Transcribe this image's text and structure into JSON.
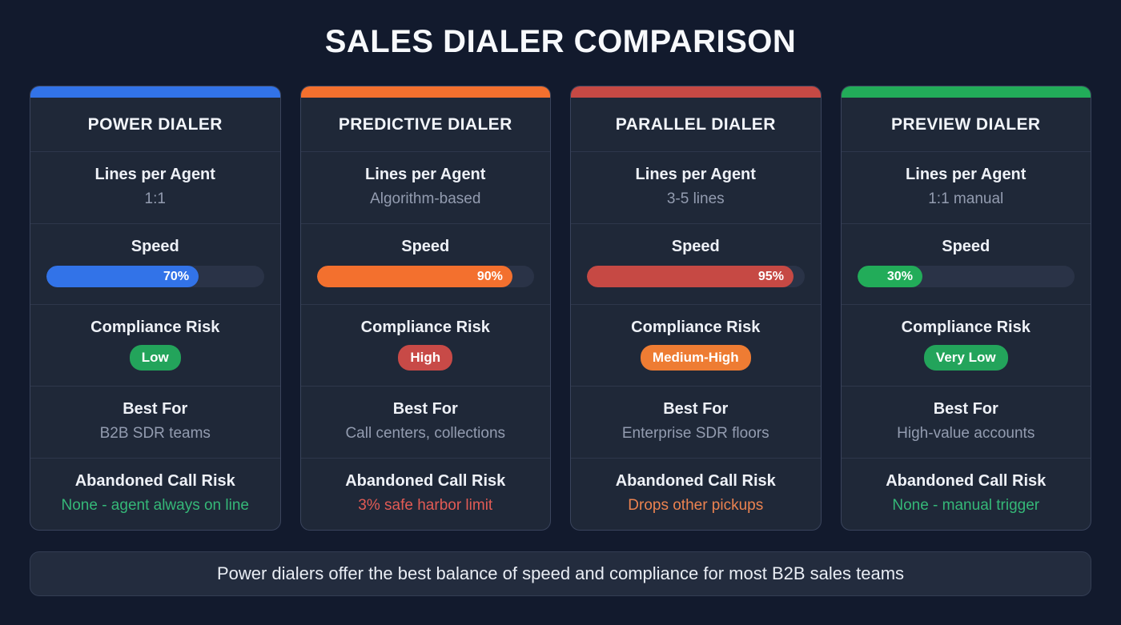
{
  "title": "SALES DIALER COMPARISON",
  "row_labels": {
    "lines": "Lines per Agent",
    "speed": "Speed",
    "compliance": "Compliance Risk",
    "best_for": "Best For",
    "abandoned": "Abandoned Call Risk"
  },
  "cards": [
    {
      "name": "POWER DIALER",
      "accent": "#3273e8",
      "lines": "1:1",
      "speed": "70%",
      "compliance": "Low",
      "compliance_color": "#23a45b",
      "best_for": "B2B SDR teams",
      "abandoned": "None - agent always on line",
      "abandoned_color": "#35b878"
    },
    {
      "name": "PREDICTIVE DIALER",
      "accent": "#f3702e",
      "lines": "Algorithm-based",
      "speed": "90%",
      "compliance": "High",
      "compliance_color": "#c84a47",
      "best_for": "Call centers, collections",
      "abandoned": "3% safe harbor limit",
      "abandoned_color": "#e25b55"
    },
    {
      "name": "PARALLEL DIALER",
      "accent": "#c64944",
      "lines": "3-5 lines",
      "speed": "95%",
      "compliance": "Medium-High",
      "compliance_color": "#ee7c33",
      "best_for": "Enterprise SDR floors",
      "abandoned": "Drops other pickups",
      "abandoned_color": "#ec8350"
    },
    {
      "name": "PREVIEW DIALER",
      "accent": "#22ac59",
      "lines": "1:1 manual",
      "speed": "30%",
      "compliance": "Very Low",
      "compliance_color": "#23a45b",
      "best_for": "High-value accounts",
      "abandoned": "None - manual trigger",
      "abandoned_color": "#35b878"
    }
  ],
  "footer": "Power dialers offer the best balance of speed and compliance for most B2B sales teams",
  "chart_data": {
    "type": "table",
    "title": "SALES DIALER COMPARISON",
    "columns": [
      "POWER DIALER",
      "PREDICTIVE DIALER",
      "PARALLEL DIALER",
      "PREVIEW DIALER"
    ],
    "rows": [
      {
        "label": "Lines per Agent",
        "values": [
          "1:1",
          "Algorithm-based",
          "3-5 lines",
          "1:1 manual"
        ]
      },
      {
        "label": "Speed",
        "values": [
          70,
          90,
          95,
          30
        ],
        "unit": "%"
      },
      {
        "label": "Compliance Risk",
        "values": [
          "Low",
          "High",
          "Medium-High",
          "Very Low"
        ]
      },
      {
        "label": "Best For",
        "values": [
          "B2B SDR teams",
          "Call centers, collections",
          "Enterprise SDR floors",
          "High-value accounts"
        ]
      },
      {
        "label": "Abandoned Call Risk",
        "values": [
          "None - agent always on line",
          "3% safe harbor limit",
          "Drops other pickups",
          "None - manual trigger"
        ]
      }
    ],
    "footer_note": "Power dialers offer the best balance of speed and compliance for most B2B sales teams",
    "accent_colors": [
      "#3273e8",
      "#f3702e",
      "#c64944",
      "#22ac59"
    ]
  }
}
